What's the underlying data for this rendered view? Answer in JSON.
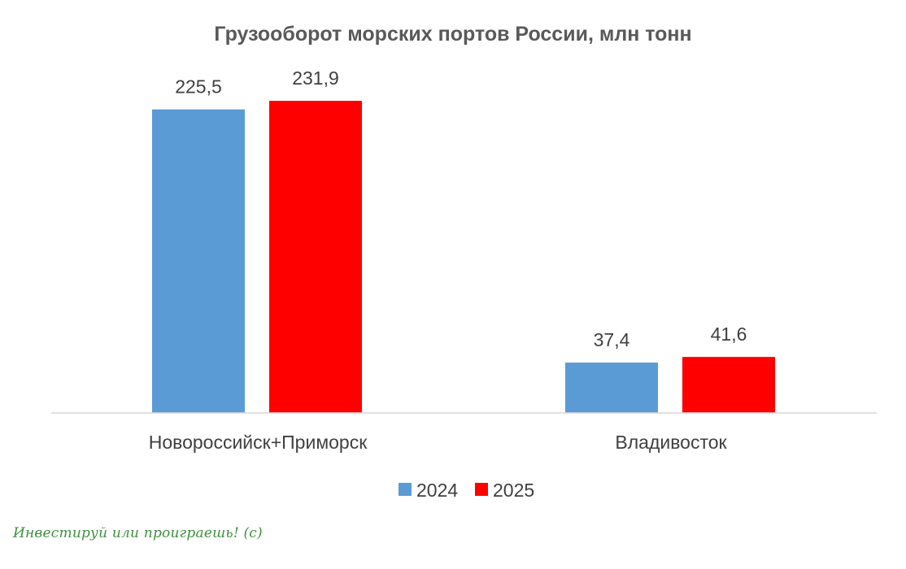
{
  "chart_data": {
    "type": "bar",
    "title": "Грузооборот морских портов России, млн тонн",
    "categories": [
      "Новороссийск+Приморск",
      "Владивосток"
    ],
    "series": [
      {
        "name": "2024",
        "values": [
          225.5,
          37.4
        ],
        "labels": [
          "225,5",
          "37,4"
        ],
        "color": "#5b9bd5"
      },
      {
        "name": "2025",
        "values": [
          231.9,
          41.6
        ],
        "labels": [
          "231,9",
          "41,6"
        ],
        "color": "#ff0000"
      }
    ],
    "ylim": [
      0,
      231.9
    ],
    "grid": false,
    "legend_position": "bottom"
  },
  "watermark": "Инвестируй или проиграешь! (с)"
}
